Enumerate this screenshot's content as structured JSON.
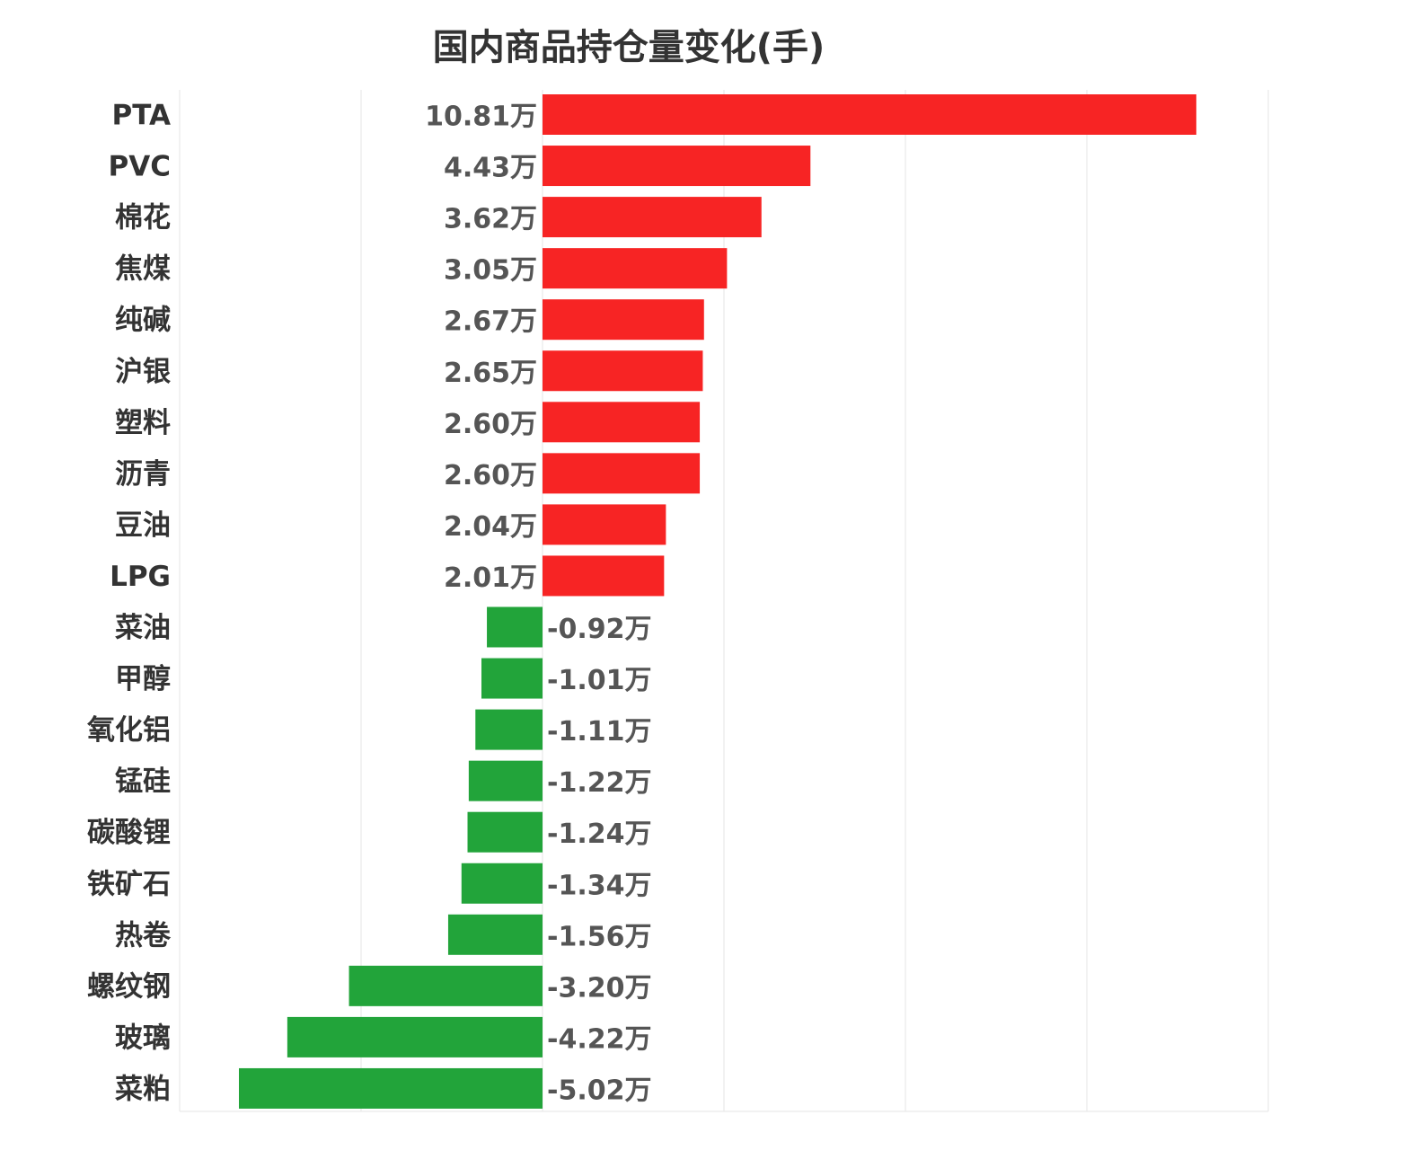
{
  "chart_data": {
    "type": "bar",
    "orientation": "horizontal",
    "title": "国内商品持仓量变化(手)",
    "unit_suffix": "万",
    "categories": [
      "PTA",
      "PVC",
      "棉花",
      "焦煤",
      "纯碱",
      "沪银",
      "塑料",
      "沥青",
      "豆油",
      "LPG",
      "菜油",
      "甲醇",
      "氧化铝",
      "锰硅",
      "碳酸锂",
      "铁矿石",
      "热卷",
      "螺纹钢",
      "玻璃",
      "菜粕"
    ],
    "values": [
      10.81,
      4.43,
      3.62,
      3.05,
      2.67,
      2.65,
      2.6,
      2.6,
      2.04,
      2.01,
      -0.92,
      -1.01,
      -1.11,
      -1.22,
      -1.24,
      -1.34,
      -1.56,
      -3.2,
      -4.22,
      -5.02
    ],
    "value_labels": [
      "10.81万",
      "4.43万",
      "3.62万",
      "3.05万",
      "2.67万",
      "2.65万",
      "2.60万",
      "2.60万",
      "2.04万",
      "2.01万",
      "-0.92万",
      "-1.01万",
      "-1.11万",
      "-1.22万",
      "-1.24万",
      "-1.34万",
      "-1.56万",
      "-3.20万",
      "-4.22万",
      "-5.02万"
    ],
    "xlim": [
      -6,
      12
    ],
    "grid": true,
    "legend": "none",
    "colors": {
      "positive": "#f72424",
      "negative": "#22a43a"
    }
  }
}
